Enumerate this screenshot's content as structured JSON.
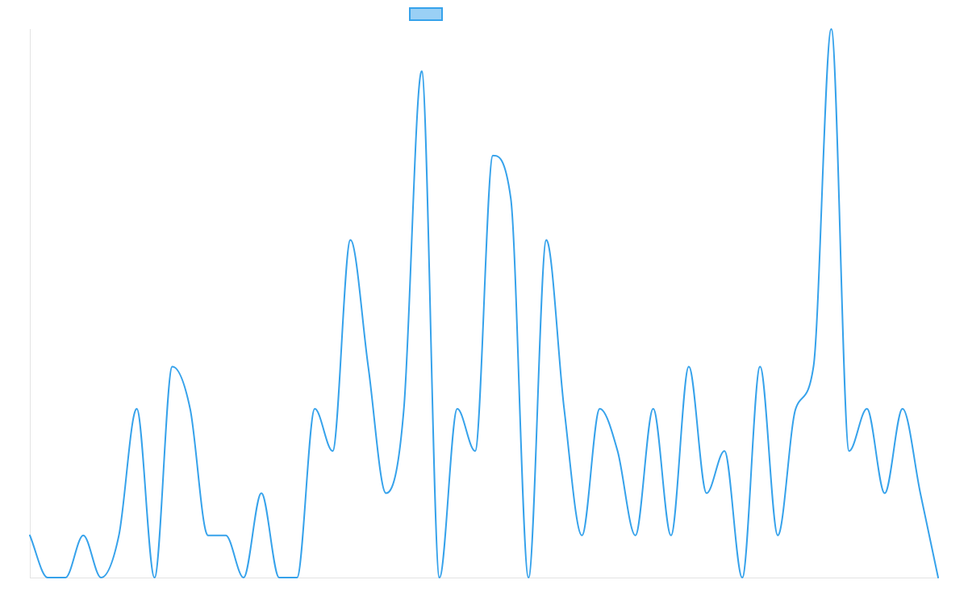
{
  "chart_data": {
    "type": "line",
    "title": "",
    "xlabel": "",
    "ylabel": "",
    "grid": false,
    "legend": "top-center",
    "smooth": true,
    "colors": {
      "line": "#36a2eb",
      "fill": "#9ad0f5",
      "axis": "#e3e3e3"
    },
    "ylim": [
      0,
      13
    ],
    "series": [
      {
        "name": "",
        "x": [
          0,
          1,
          2,
          3,
          4,
          5,
          6,
          7,
          8,
          9,
          10,
          11,
          12,
          13,
          14,
          15,
          16,
          17,
          18,
          19,
          20,
          21,
          22,
          23,
          24,
          25,
          26,
          27,
          28,
          29,
          30,
          31,
          32,
          33,
          34,
          35,
          36,
          37,
          38,
          39,
          40,
          41,
          42,
          43,
          44,
          45,
          46,
          47,
          48,
          49,
          50,
          51
        ],
        "values": [
          1,
          0,
          0,
          1,
          0,
          1,
          4,
          0,
          5,
          4,
          1,
          1,
          0,
          2,
          0,
          0,
          4,
          3,
          8,
          5,
          2,
          4,
          12,
          0,
          4,
          3,
          10,
          9,
          0,
          8,
          4,
          1,
          4,
          3,
          1,
          4,
          1,
          5,
          2,
          3,
          0,
          5,
          1,
          4,
          5,
          13,
          3,
          4,
          2,
          4,
          2,
          0
        ]
      }
    ]
  }
}
